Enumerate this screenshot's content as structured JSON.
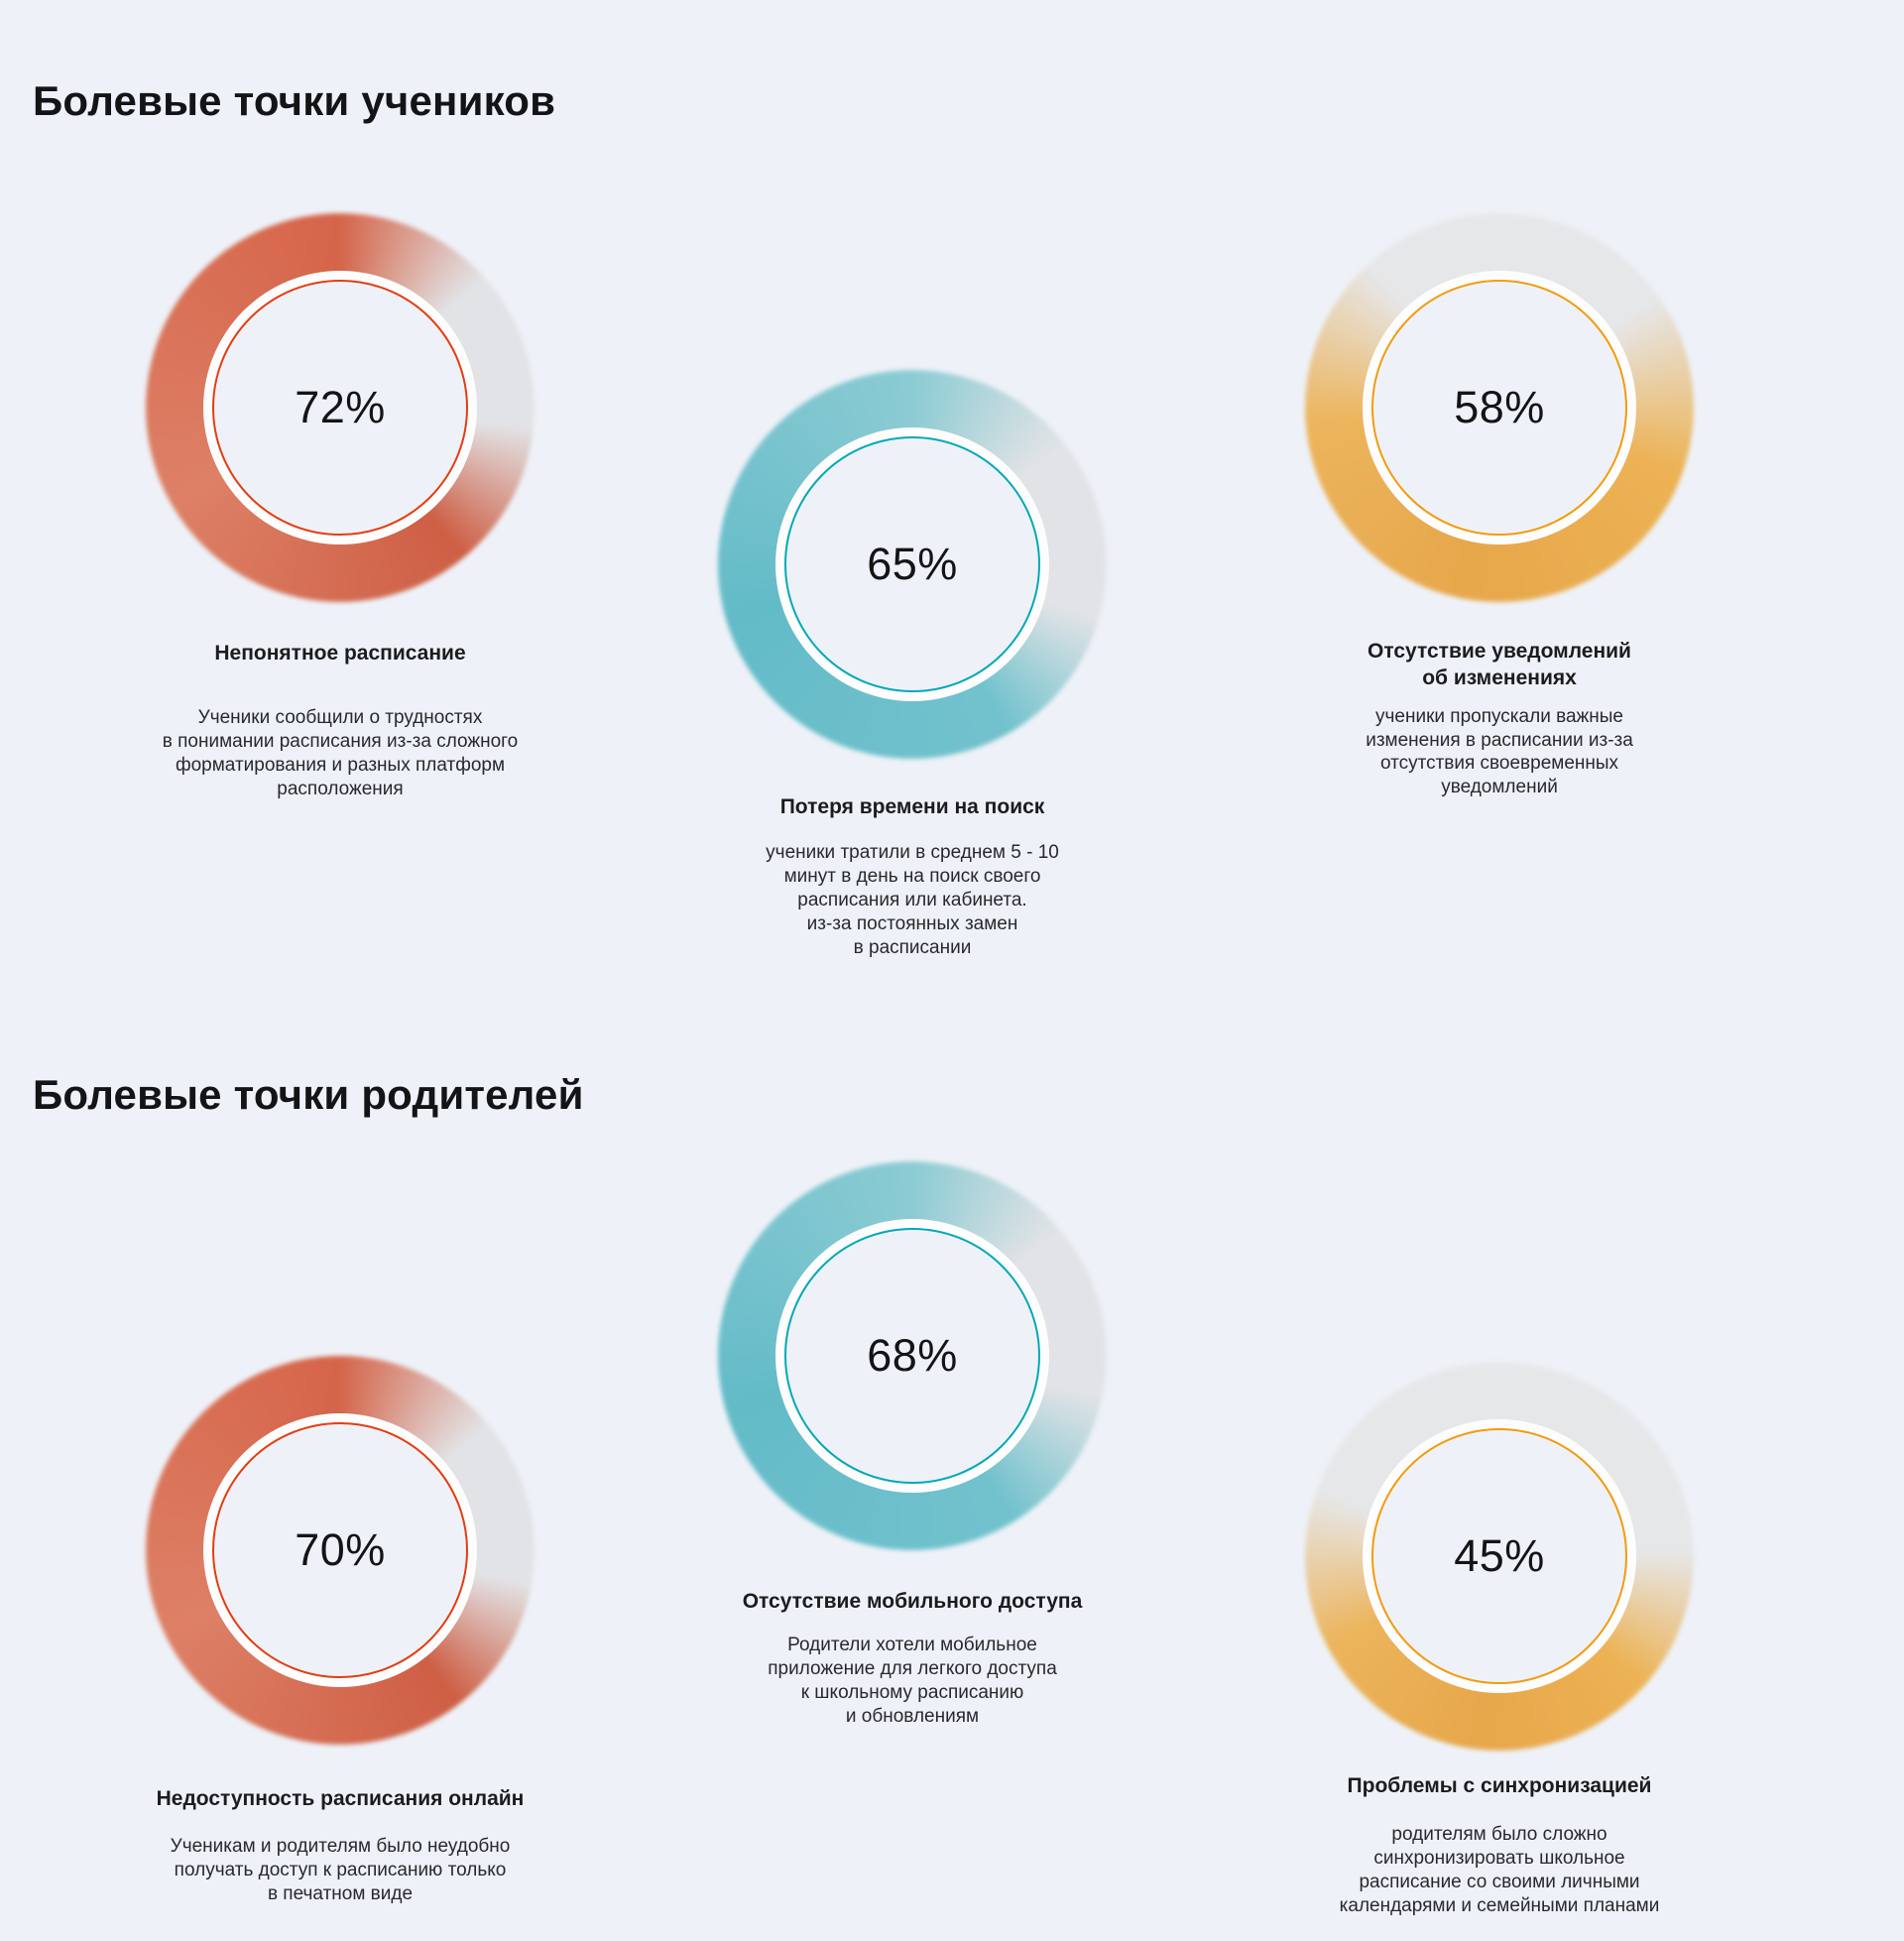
{
  "page": {
    "background_color": "#eef2f8",
    "text_color": "#17181a",
    "track_color": "#e2e3e6",
    "gap_ring_color": "#fdfdfe"
  },
  "sections": [
    {
      "title": "Болевые точки учеников",
      "cards": [
        {
          "percent": "72%",
          "value": 72,
          "label": "Непонятное расписание",
          "description": "Ученики сообщили о трудностях\nв понимании расписания из-за сложного\nформатирования и разных платформ\nрасположения",
          "donut": {
            "theme": "coral",
            "ring_color": "#d5654a",
            "stroke_color": "#e63c10",
            "gradient_stops": [
              [
                "#d5654a",
                0
              ],
              [
                "#e2e3e6",
                48
              ],
              [
                "#e2e3e6",
                96
              ],
              [
                "#ce5f45",
                140
              ],
              [
                "#dd8066",
                240
              ],
              [
                "#d5654a",
                360
              ]
            ]
          }
        },
        {
          "percent": "65%",
          "value": 65,
          "label": "Потеря времени на поиск",
          "description": "ученики тратили в среднем 5 - 10\nминут в день на поиск своего\nрасписания или кабинета.\nиз-за постоянных замен\nв расписании",
          "donut": {
            "theme": "teal",
            "ring_color": "#74c3ce",
            "stroke_color": "#00a9b8",
            "gradient_stops": [
              [
                "#8ccbd3",
                0
              ],
              [
                "#e2e3e6",
                52
              ],
              [
                "#e2e3e6",
                106
              ],
              [
                "#72c2cd",
                150
              ],
              [
                "#63bbc8",
                255
              ],
              [
                "#8ccbd3",
                360
              ]
            ]
          }
        },
        {
          "percent": "58%",
          "value": 58,
          "label": "Отсутствие уведомлений\nоб изменениях",
          "description": "ученики пропускали важные\nизменения в расписании из-за\nотсутствия своевременных\nуведомлений",
          "donut": {
            "theme": "amber",
            "ring_color": "#ebb055",
            "stroke_color": "#f49b0a",
            "gradient_stops": [
              [
                "#e6e7e9",
                0
              ],
              [
                "#e6e7e9",
                55
              ],
              [
                "#ecb254",
                110
              ],
              [
                "#e7a74b",
                190
              ],
              [
                "#ecb45c",
                265
              ],
              [
                "#e6e7e9",
                318
              ],
              [
                "#e6e7e9",
                360
              ]
            ]
          }
        }
      ]
    },
    {
      "title": "Болевые точки родителей",
      "cards": [
        {
          "percent": "70%",
          "value": 70,
          "label": "Недоступность расписания онлайн",
          "description": "Ученикам и родителям было неудобно\nполучать доступ к расписанию только\nв печатном виде",
          "donut": {
            "theme": "coral",
            "ring_color": "#d5654a",
            "stroke_color": "#e63c10",
            "gradient_stops": [
              [
                "#d5654a",
                0
              ],
              [
                "#e2e3e6",
                50
              ],
              [
                "#e2e3e6",
                100
              ],
              [
                "#ce5f45",
                142
              ],
              [
                "#dd8066",
                245
              ],
              [
                "#d5654a",
                360
              ]
            ]
          }
        },
        {
          "percent": "68%",
          "value": 68,
          "label": "Отсутствие мобильного доступа",
          "description": "Родители хотели мобильное\nприложение для легкого доступа\nк школьному расписанию\nи обновлениям",
          "donut": {
            "theme": "teal",
            "ring_color": "#74c3ce",
            "stroke_color": "#00a9b8",
            "gradient_stops": [
              [
                "#8ccbd3",
                0
              ],
              [
                "#e2e3e6",
                50
              ],
              [
                "#e2e3e6",
                102
              ],
              [
                "#72c2cd",
                148
              ],
              [
                "#63bbc8",
                255
              ],
              [
                "#8ccbd3",
                360
              ]
            ]
          }
        },
        {
          "percent": "45%",
          "value": 45,
          "label": "Проблемы с синхронизацией",
          "description": "родителям было сложно\nсинхронизировать школьное\nрасписание со своими личными\nкалендарями и семейными планами",
          "donut": {
            "theme": "amber",
            "ring_color": "#ebb055",
            "stroke_color": "#f49b0a",
            "gradient_stops": [
              [
                "#e6e7e9",
                0
              ],
              [
                "#e6e7e9",
                88
              ],
              [
                "#ecb254",
                132
              ],
              [
                "#e7a74b",
                185
              ],
              [
                "#ecb45c",
                242
              ],
              [
                "#e6e7e9",
                290
              ],
              [
                "#e6e7e9",
                360
              ]
            ]
          }
        }
      ]
    }
  ],
  "chart_data": [
    {
      "type": "pie",
      "subtype": "donut",
      "title": "Болевые точки учеников",
      "legend_position": "none",
      "series": [
        {
          "name": "Непонятное расписание",
          "value": 72,
          "unit": "%",
          "color": "#d5654a"
        },
        {
          "name": "Потеря времени на поиск",
          "value": 65,
          "unit": "%",
          "color": "#74c3ce"
        },
        {
          "name": "Отсутствие уведомлений об изменениях",
          "value": 58,
          "unit": "%",
          "color": "#ebb055"
        }
      ]
    },
    {
      "type": "pie",
      "subtype": "donut",
      "title": "Болевые точки родителей",
      "legend_position": "none",
      "series": [
        {
          "name": "Недоступность расписания онлайн",
          "value": 70,
          "unit": "%",
          "color": "#d5654a"
        },
        {
          "name": "Отсутствие мобильного доступа",
          "value": 68,
          "unit": "%",
          "color": "#74c3ce"
        },
        {
          "name": "Проблемы с синхронизацией",
          "value": 45,
          "unit": "%",
          "color": "#ebb055"
        }
      ]
    }
  ]
}
